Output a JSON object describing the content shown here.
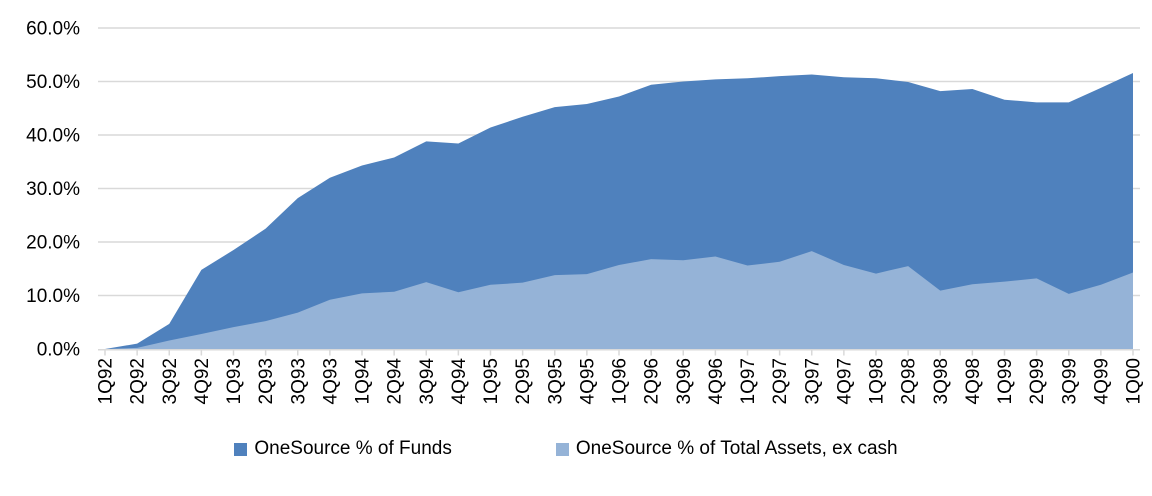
{
  "chart_data": {
    "type": "area",
    "title": "",
    "categories": [
      "1Q92",
      "2Q92",
      "3Q92",
      "4Q92",
      "1Q93",
      "2Q93",
      "3Q93",
      "4Q93",
      "1Q94",
      "2Q94",
      "3Q94",
      "4Q94",
      "1Q95",
      "2Q95",
      "3Q95",
      "4Q95",
      "1Q96",
      "2Q96",
      "3Q96",
      "4Q96",
      "1Q97",
      "2Q97",
      "3Q97",
      "4Q97",
      "1Q98",
      "2Q98",
      "3Q98",
      "4Q98",
      "1Q99",
      "2Q99",
      "3Q99",
      "4Q99",
      "1Q00"
    ],
    "series": [
      {
        "name": "OneSource % of Funds",
        "color": "#4F81BD",
        "values": [
          0,
          1.0,
          4.7,
          14.8,
          18.5,
          22.5,
          28.2,
          32.0,
          34.3,
          35.8,
          38.8,
          38.4,
          41.4,
          43.4,
          45.2,
          45.8,
          47.2,
          49.4,
          50.0,
          50.4,
          50.6,
          51.0,
          51.3,
          50.8,
          50.6,
          49.9,
          48.2,
          48.6,
          46.6,
          46.1,
          46.1,
          48.8,
          51.6
        ]
      },
      {
        "name": "OneSource % of Total Assets, ex cash",
        "color": "#95B3D7",
        "values": [
          0,
          0.2,
          1.6,
          2.8,
          4.1,
          5.2,
          6.8,
          9.2,
          10.4,
          10.7,
          12.5,
          10.6,
          12.0,
          12.4,
          13.8,
          14.0,
          15.7,
          16.8,
          16.6,
          17.3,
          15.6,
          16.3,
          18.3,
          15.7,
          14.1,
          15.5,
          10.9,
          12.1,
          12.6,
          13.2,
          10.3,
          12.0,
          14.3
        ]
      }
    ],
    "ylim": [
      0,
      60
    ],
    "ytick_step": 10,
    "ytick_labels": [
      "0.0%",
      "10.0%",
      "20.0%",
      "30.0%",
      "40.0%",
      "50.0%",
      "60.0%"
    ],
    "xlabel": "",
    "ylabel": "",
    "grid": "horizontal",
    "legend_position": "bottom",
    "series_overlap": "overlaid, both baselined at zero (not stacked)"
  },
  "colors": {
    "funds_area": "#4F81BD",
    "assets_area": "#95B3D7",
    "gridline": "#D9D9D9",
    "axis_line": "#D9D9D9",
    "text": "#000000",
    "background": "#FFFFFF"
  }
}
